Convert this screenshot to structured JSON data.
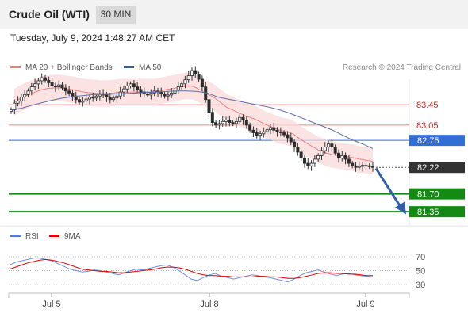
{
  "header": {
    "title": "Crude Oil (WTI)",
    "timeframe": "30 MIN"
  },
  "datetime": "Tuesday, July 9, 2024 1:48:27 AM CET",
  "credit": "Research © 2024 Trading Central",
  "legend": [
    {
      "label": "MA 20 + Bollinger Bands",
      "color": "#f08080"
    },
    {
      "label": "MA 50",
      "color": "#3d5a99"
    }
  ],
  "rsi_legend": [
    {
      "label": "RSI",
      "color": "#4d7bd6"
    },
    {
      "label": "9MA",
      "color": "#e00000"
    }
  ],
  "chart_data": {
    "type": "candlestick",
    "price_axis": {
      "min": 81.15,
      "max": 83.95
    },
    "levels": [
      {
        "label": "83.45",
        "value": 83.45,
        "color": "#f08080",
        "style": "thin"
      },
      {
        "label": "83.05",
        "value": 83.05,
        "color": "#f08080",
        "style": "thin"
      },
      {
        "label": "82.75",
        "value": 82.75,
        "color": "#2f6fd6",
        "style": "thin",
        "tag_bg": "#2f6fd6"
      },
      {
        "label": "81.70",
        "value": 81.7,
        "color": "#138a13",
        "style": "thick",
        "tag_bg": "#138a13"
      },
      {
        "label": "81.35",
        "value": 81.35,
        "color": "#138a13",
        "style": "thick",
        "tag_bg": "#138a13"
      }
    ],
    "last_price": {
      "label": "82.22",
      "value": 82.22,
      "tag_bg": "#333333"
    },
    "closes": [
      83.35,
      83.48,
      83.52,
      83.6,
      83.65,
      83.72,
      83.8,
      83.86,
      83.92,
      83.98,
      83.93,
      83.88,
      83.82,
      83.8,
      83.84,
      83.78,
      83.72,
      83.68,
      83.62,
      83.55,
      83.5,
      83.52,
      83.56,
      83.6,
      83.58,
      83.62,
      83.66,
      83.64,
      83.6,
      83.55,
      83.58,
      83.62,
      83.7,
      83.76,
      83.82,
      83.86,
      83.8,
      83.75,
      83.7,
      83.66,
      83.64,
      83.68,
      83.72,
      83.7,
      83.66,
      83.62,
      83.64,
      83.68,
      83.74,
      83.8,
      83.86,
      83.94,
      84.02,
      84.12,
      84.05,
      83.95,
      83.8,
      83.55,
      83.3,
      83.1,
      83.05,
      83.08,
      83.12,
      83.15,
      83.1,
      83.08,
      83.12,
      83.2,
      83.15,
      83.05,
      82.95,
      82.9,
      82.85,
      82.88,
      82.92,
      82.96,
      83.0,
      82.95,
      82.92,
      82.9,
      82.86,
      82.8,
      82.72,
      82.62,
      82.52,
      82.4,
      82.3,
      82.25,
      82.3,
      82.38,
      82.45,
      82.55,
      82.62,
      82.68,
      82.62,
      82.5,
      82.4,
      82.45,
      82.38,
      82.3,
      82.25,
      82.22,
      82.24,
      82.26,
      82.25,
      82.24,
      82.22
    ],
    "ma20_values": [
      83.5,
      83.58,
      83.64,
      83.69,
      83.74,
      83.77,
      83.78,
      83.78,
      83.76,
      83.74,
      83.71,
      83.69,
      83.68,
      83.67,
      83.67,
      83.68,
      83.7,
      83.7,
      83.7,
      83.7,
      83.7,
      83.7,
      83.72,
      83.75,
      83.77,
      83.8,
      83.82,
      83.81,
      83.74,
      83.66,
      83.6,
      83.5,
      83.4,
      83.34,
      83.28,
      83.22,
      83.18,
      83.12,
      83.05,
      83.0,
      82.95,
      82.92,
      82.88,
      82.78,
      82.7,
      82.62,
      82.55,
      82.5,
      82.47,
      82.45,
      82.43,
      82.41,
      82.38,
      82.36,
      82.34
    ],
    "ma50_values": [
      83.35,
      83.38,
      83.44,
      83.49,
      83.54,
      83.58,
      83.61,
      83.63,
      83.65,
      83.65,
      83.66,
      83.67,
      83.68,
      83.69,
      83.7,
      83.71,
      83.72,
      83.72,
      83.71,
      83.68,
      83.6,
      83.56,
      83.52,
      83.48,
      83.44,
      83.4,
      83.35,
      83.28,
      83.2,
      83.12,
      83.04,
      82.96,
      82.86,
      82.76,
      82.68,
      82.59
    ],
    "rsi_axis": {
      "min": 20,
      "max": 80,
      "ticks": [
        70,
        50,
        30
      ]
    },
    "rsi": [
      58,
      62,
      64,
      66,
      68,
      68,
      66,
      64,
      60,
      56,
      52,
      50,
      48,
      49,
      51,
      50,
      48,
      46,
      44,
      47,
      50,
      52,
      51,
      53,
      55,
      57,
      58,
      55,
      50,
      44,
      38,
      36,
      40,
      44,
      46,
      42,
      40,
      38,
      40,
      42,
      44,
      43,
      41,
      40,
      38,
      36,
      34,
      38,
      43,
      47,
      49,
      51,
      48,
      45,
      43,
      45,
      46,
      44,
      43,
      42,
      43
    ],
    "rsi_ma": [
      52,
      55,
      58,
      61,
      63,
      65,
      66,
      65,
      63,
      61,
      58,
      55,
      52,
      51,
      50,
      49,
      49,
      48,
      47,
      47,
      48,
      49,
      50,
      51,
      52,
      54,
      55,
      55,
      54,
      52,
      49,
      46,
      44,
      43,
      43,
      42,
      42,
      41,
      41,
      41,
      41,
      42,
      42,
      41,
      41,
      40,
      39,
      39,
      40,
      42,
      44,
      46,
      47,
      47,
      46,
      46,
      45,
      45,
      44,
      43,
      43
    ],
    "x_ticks": [
      "Jul 5",
      "Jul 8",
      "Jul 9"
    ]
  }
}
